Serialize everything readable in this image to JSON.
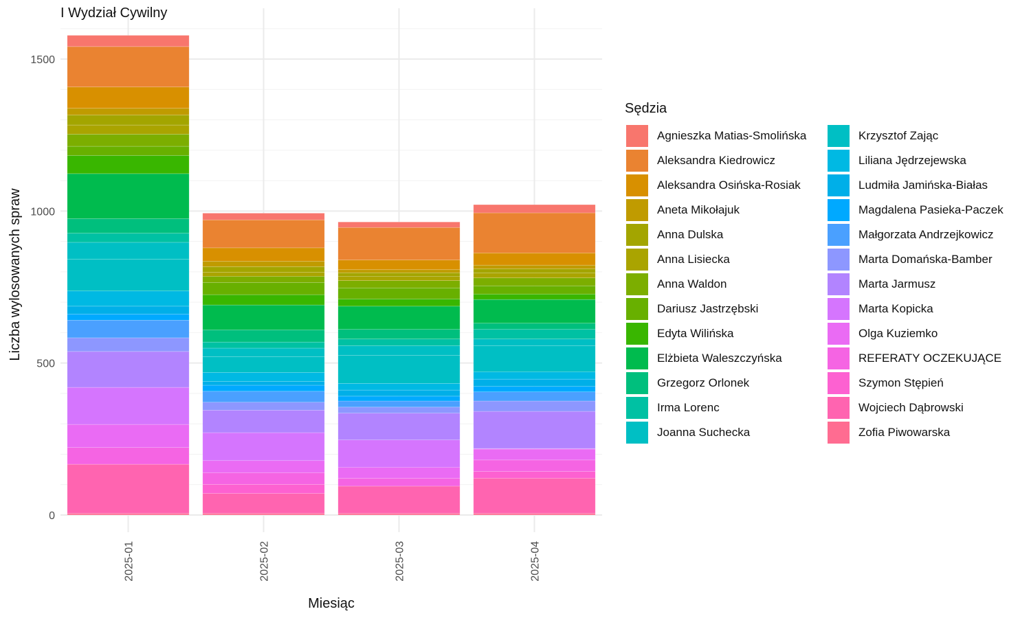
{
  "chart_data": {
    "type": "bar",
    "stacked": true,
    "title": "I Wydział Cywilny",
    "xlabel": "Miesiąc",
    "ylabel": "Liczba wylosowanych spraw",
    "ylim": [
      -60,
      1590
    ],
    "yticks": [
      0,
      500,
      1000,
      1500
    ],
    "categories": [
      "2025-01",
      "2025-02",
      "2025-03",
      "2025-04"
    ],
    "legend_title": "Sędzia",
    "legend_position": "right",
    "grid": true,
    "series": [
      {
        "name": "Agnieszka Matias-Smolińska",
        "color": "#F8766D",
        "values": [
          37,
          22,
          18,
          27
        ]
      },
      {
        "name": "Aleksandra Kiedrowicz",
        "color": "#EA8331",
        "values": [
          133,
          92,
          107,
          132
        ]
      },
      {
        "name": "Aleksandra Osińska-Rosiak",
        "color": "#D89000",
        "values": [
          70,
          44,
          32,
          40
        ]
      },
      {
        "name": "Aneta Mikołajuk",
        "color": "#C09B00",
        "values": [
          22,
          18,
          10,
          12
        ]
      },
      {
        "name": "Anna Dulska",
        "color": "#A3A500",
        "values": [
          33,
          18,
          12,
          14
        ]
      },
      {
        "name": "Anna Lisiecka",
        "color": "#AAA400",
        "values": [
          30,
          14,
          14,
          16
        ]
      },
      {
        "name": "Anna Waldon",
        "color": "#7CAE00",
        "values": [
          40,
          20,
          24,
          26
        ]
      },
      {
        "name": "Dariusz Jastrzębski",
        "color": "#68B000",
        "values": [
          30,
          40,
          36,
          27
        ]
      },
      {
        "name": "Edyta Wilińska",
        "color": "#39B600",
        "values": [
          60,
          34,
          24,
          18
        ]
      },
      {
        "name": "Elżbieta Waleszczyńska",
        "color": "#00BB4E",
        "values": [
          148,
          82,
          76,
          78
        ]
      },
      {
        "name": "Grzegorz Orlonek",
        "color": "#00BF7D",
        "values": [
          48,
          40,
          32,
          20
        ]
      },
      {
        "name": "Irma Lorenc",
        "color": "#00C1A3",
        "values": [
          30,
          20,
          22,
          32
        ]
      },
      {
        "name": "Joanna Suchecka",
        "color": "#00BFC4",
        "values": [
          55,
          28,
          32,
          22
        ]
      },
      {
        "name": "Krzysztof Zając",
        "color": "#00BFC4",
        "values": [
          105,
          52,
          92,
          86
        ]
      },
      {
        "name": "Liliana Jędrzejewska",
        "color": "#00B9E3",
        "values": [
          50,
          30,
          22,
          24
        ]
      },
      {
        "name": "Ludmiła Jamińska-Białas",
        "color": "#00AFE8",
        "values": [
          26,
          12,
          20,
          24
        ]
      },
      {
        "name": "Magdalena Pasieka-Paczek",
        "color": "#00A9FF",
        "values": [
          20,
          20,
          16,
          18
        ]
      },
      {
        "name": "Małgorzata Andrzejkowicz",
        "color": "#4AA0FF",
        "values": [
          58,
          36,
          20,
          30
        ]
      },
      {
        "name": "Marta Domańska-Bamber",
        "color": "#8D97FF",
        "values": [
          45,
          26,
          20,
          34
        ]
      },
      {
        "name": "Marta Jarmusz",
        "color": "#B284FF",
        "values": [
          118,
          74,
          88,
          122
        ]
      },
      {
        "name": "Marta Kopicka",
        "color": "#D575FE",
        "values": [
          122,
          92,
          90,
          2
        ]
      },
      {
        "name": "Olga Kuziemko",
        "color": "#EA6BF4",
        "values": [
          76,
          40,
          36,
          36
        ]
      },
      {
        "name": "REFERATY OCZEKUJĄCE",
        "color": "#F564E3",
        "values": [
          55,
          38,
          26,
          38
        ]
      },
      {
        "name": "Szymon Stępień",
        "color": "#FD61D1",
        "values": [
          0,
          30,
          0,
          22
        ]
      },
      {
        "name": "Wojciech Dąbrowski",
        "color": "#FF64B0",
        "values": [
          162,
          66,
          90,
          116
        ]
      },
      {
        "name": "Zofia Piwowarska",
        "color": "#FF6C91",
        "values": [
          5,
          5,
          5,
          5
        ]
      }
    ]
  }
}
